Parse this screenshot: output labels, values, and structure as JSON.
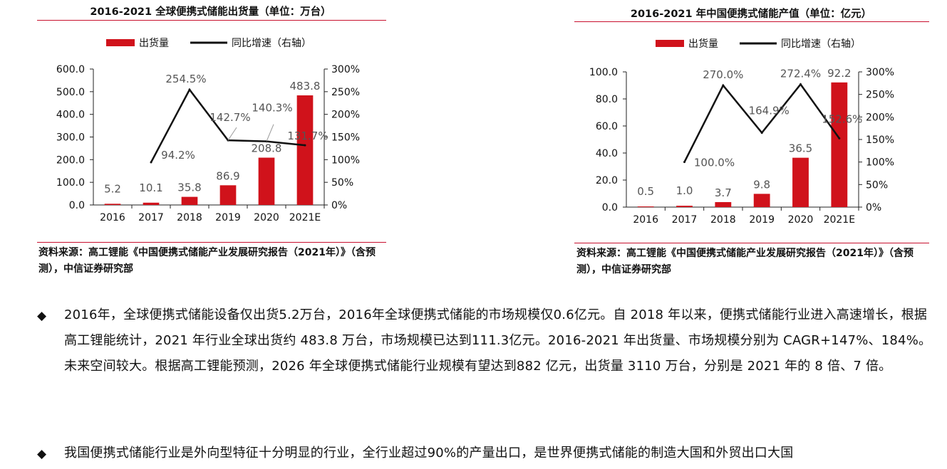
{
  "chart_data": [
    {
      "type": "bar",
      "title": "2016-2021 全球便携式储能出货量（单位：万台）",
      "categories": [
        "2016",
        "2017",
        "2018",
        "2019",
        "2020",
        "2021E"
      ],
      "series": [
        {
          "name": "出货量",
          "values": [
            5.2,
            10.1,
            35.8,
            86.9,
            208.8,
            483.8
          ],
          "axis": "left",
          "kind": "bar",
          "color": "#d0121b"
        },
        {
          "name": "同比增速（右轴）",
          "values": [
            null,
            94.2,
            254.5,
            142.7,
            140.3,
            131.7
          ],
          "axis": "right",
          "kind": "line",
          "color": "#111111"
        }
      ],
      "bar_labels": [
        "5.2",
        "10.1",
        "35.8",
        "86.9",
        "208.8",
        "483.8"
      ],
      "line_labels": [
        "",
        "94.2%",
        "254.5%",
        "142.7%",
        "140.3%",
        "131.7%"
      ],
      "yticks_left": [
        "0.0",
        "100.0",
        "200.0",
        "300.0",
        "400.0",
        "500.0",
        "600.0"
      ],
      "yticks_right": [
        "0%",
        "50%",
        "100%",
        "150%",
        "200%",
        "250%",
        "300%"
      ],
      "ylim_left": [
        0,
        600
      ],
      "ylim_right": [
        0,
        300
      ],
      "legend_position": "top",
      "grid": false,
      "source": "资料来源：高工锂能《中国便携式储能产业发展研究报告（2021年）》（含预测），中信证券研究部"
    },
    {
      "type": "bar",
      "title": "2016-2021 年中国便携式储能产值（单位：亿元）",
      "categories": [
        "2016",
        "2017",
        "2018",
        "2019",
        "2020",
        "2021E"
      ],
      "series": [
        {
          "name": "出货量",
          "values": [
            0.5,
            1.0,
            3.7,
            9.8,
            36.5,
            92.2
          ],
          "axis": "left",
          "kind": "bar",
          "color": "#d0121b"
        },
        {
          "name": "同比增速（右轴）",
          "values": [
            null,
            100.0,
            270.0,
            164.9,
            272.4,
            152.6
          ],
          "axis": "right",
          "kind": "line",
          "color": "#111111"
        }
      ],
      "bar_labels": [
        "0.5",
        "1.0",
        "3.7",
        "9.8",
        "36.5",
        "92.2"
      ],
      "line_labels": [
        "",
        "100.0%",
        "270.0%",
        "164.9%",
        "272.4%",
        "152.6%"
      ],
      "yticks_left": [
        "0.0",
        "20.0",
        "40.0",
        "60.0",
        "80.0",
        "100.0"
      ],
      "yticks_right": [
        "0%",
        "50%",
        "100%",
        "150%",
        "200%",
        "250%",
        "300%"
      ],
      "ylim_left": [
        0,
        100
      ],
      "ylim_right": [
        0,
        300
      ],
      "legend_position": "top",
      "grid": false,
      "source": "资料来源：高工锂能《中国便携式储能产业发展研究报告（2021年）》（含预测），中信证券研究部"
    }
  ],
  "text": {
    "bullet_symbol": "◆",
    "paragraph1": "2016年，全球便携式储能设备仅出货5.2万台，2016年全球便携式储能的市场规模仅0.6亿元。自 2018 年以来，便携式储能行业进入高速增长，根据高工锂能统计，2021 年行业全球出货约 483.8 万台，市场规模已达到111.3亿元。2016-2021 年出货量、市场规模分别为 CAGR+147%、184%。未来空间较大。根据高工锂能预测，2026 年全球便携式储能行业规模有望达到882 亿元，出货量 3110 万台，分别是 2021 年的 8 倍、7 倍。",
    "paragraph2": "我国便携式储能行业是外向型特征十分明显的行业，全行业超过90%的产量出口，是世界便携式储能的制造大国和外贸出口大国"
  }
}
